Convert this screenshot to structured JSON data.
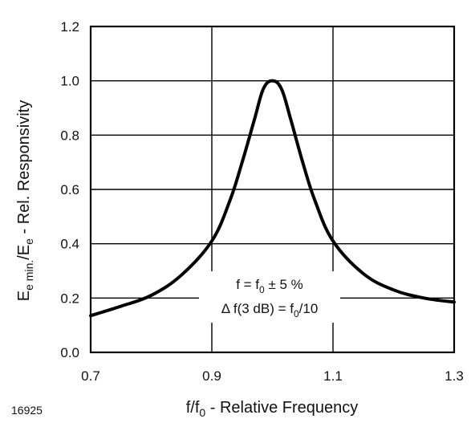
{
  "chart_data": {
    "type": "line",
    "figure_id": "16925",
    "xlabel": {
      "main": "f/f",
      "sub": "0",
      "rest": " - Relative Frequency"
    },
    "ylabel": {
      "e1": "E",
      "s1": "e min.",
      "e2": "/E",
      "s2": "e",
      "rest": " - Rel. Responsivity"
    },
    "xlim": [
      0.7,
      1.3
    ],
    "ylim": [
      0.0,
      1.2
    ],
    "xticks": [
      0.7,
      0.9,
      1.1,
      1.3
    ],
    "xtick_labels": [
      "0.7",
      "0.9",
      "1.1",
      "1.3"
    ],
    "yticks": [
      0.0,
      0.2,
      0.4,
      0.6,
      0.8,
      1.0,
      1.2
    ],
    "ytick_labels": [
      "0.0",
      "0.2",
      "0.4",
      "0.6",
      "0.8",
      "1.0",
      "1.2"
    ],
    "grid": true,
    "line_color": "#000000",
    "annotation": {
      "line1": {
        "a": "f = f",
        "sub": "0",
        "b": " ± 5 %"
      },
      "line2": {
        "a": "Δ f(3 dB) = f",
        "sub": "0",
        "b": "/10"
      }
    },
    "series": [
      {
        "x": [
          0.7,
          0.75,
          0.8,
          0.85,
          0.9,
          0.93,
          0.95,
          0.97,
          0.985,
          1.0,
          1.015,
          1.03,
          1.05,
          1.07,
          1.1,
          1.15,
          1.2,
          1.25,
          1.3
        ],
        "y": [
          0.135,
          0.17,
          0.21,
          0.285,
          0.41,
          0.56,
          0.7,
          0.855,
          0.97,
          1.0,
          0.97,
          0.86,
          0.7,
          0.56,
          0.41,
          0.29,
          0.23,
          0.2,
          0.185
        ]
      }
    ]
  }
}
